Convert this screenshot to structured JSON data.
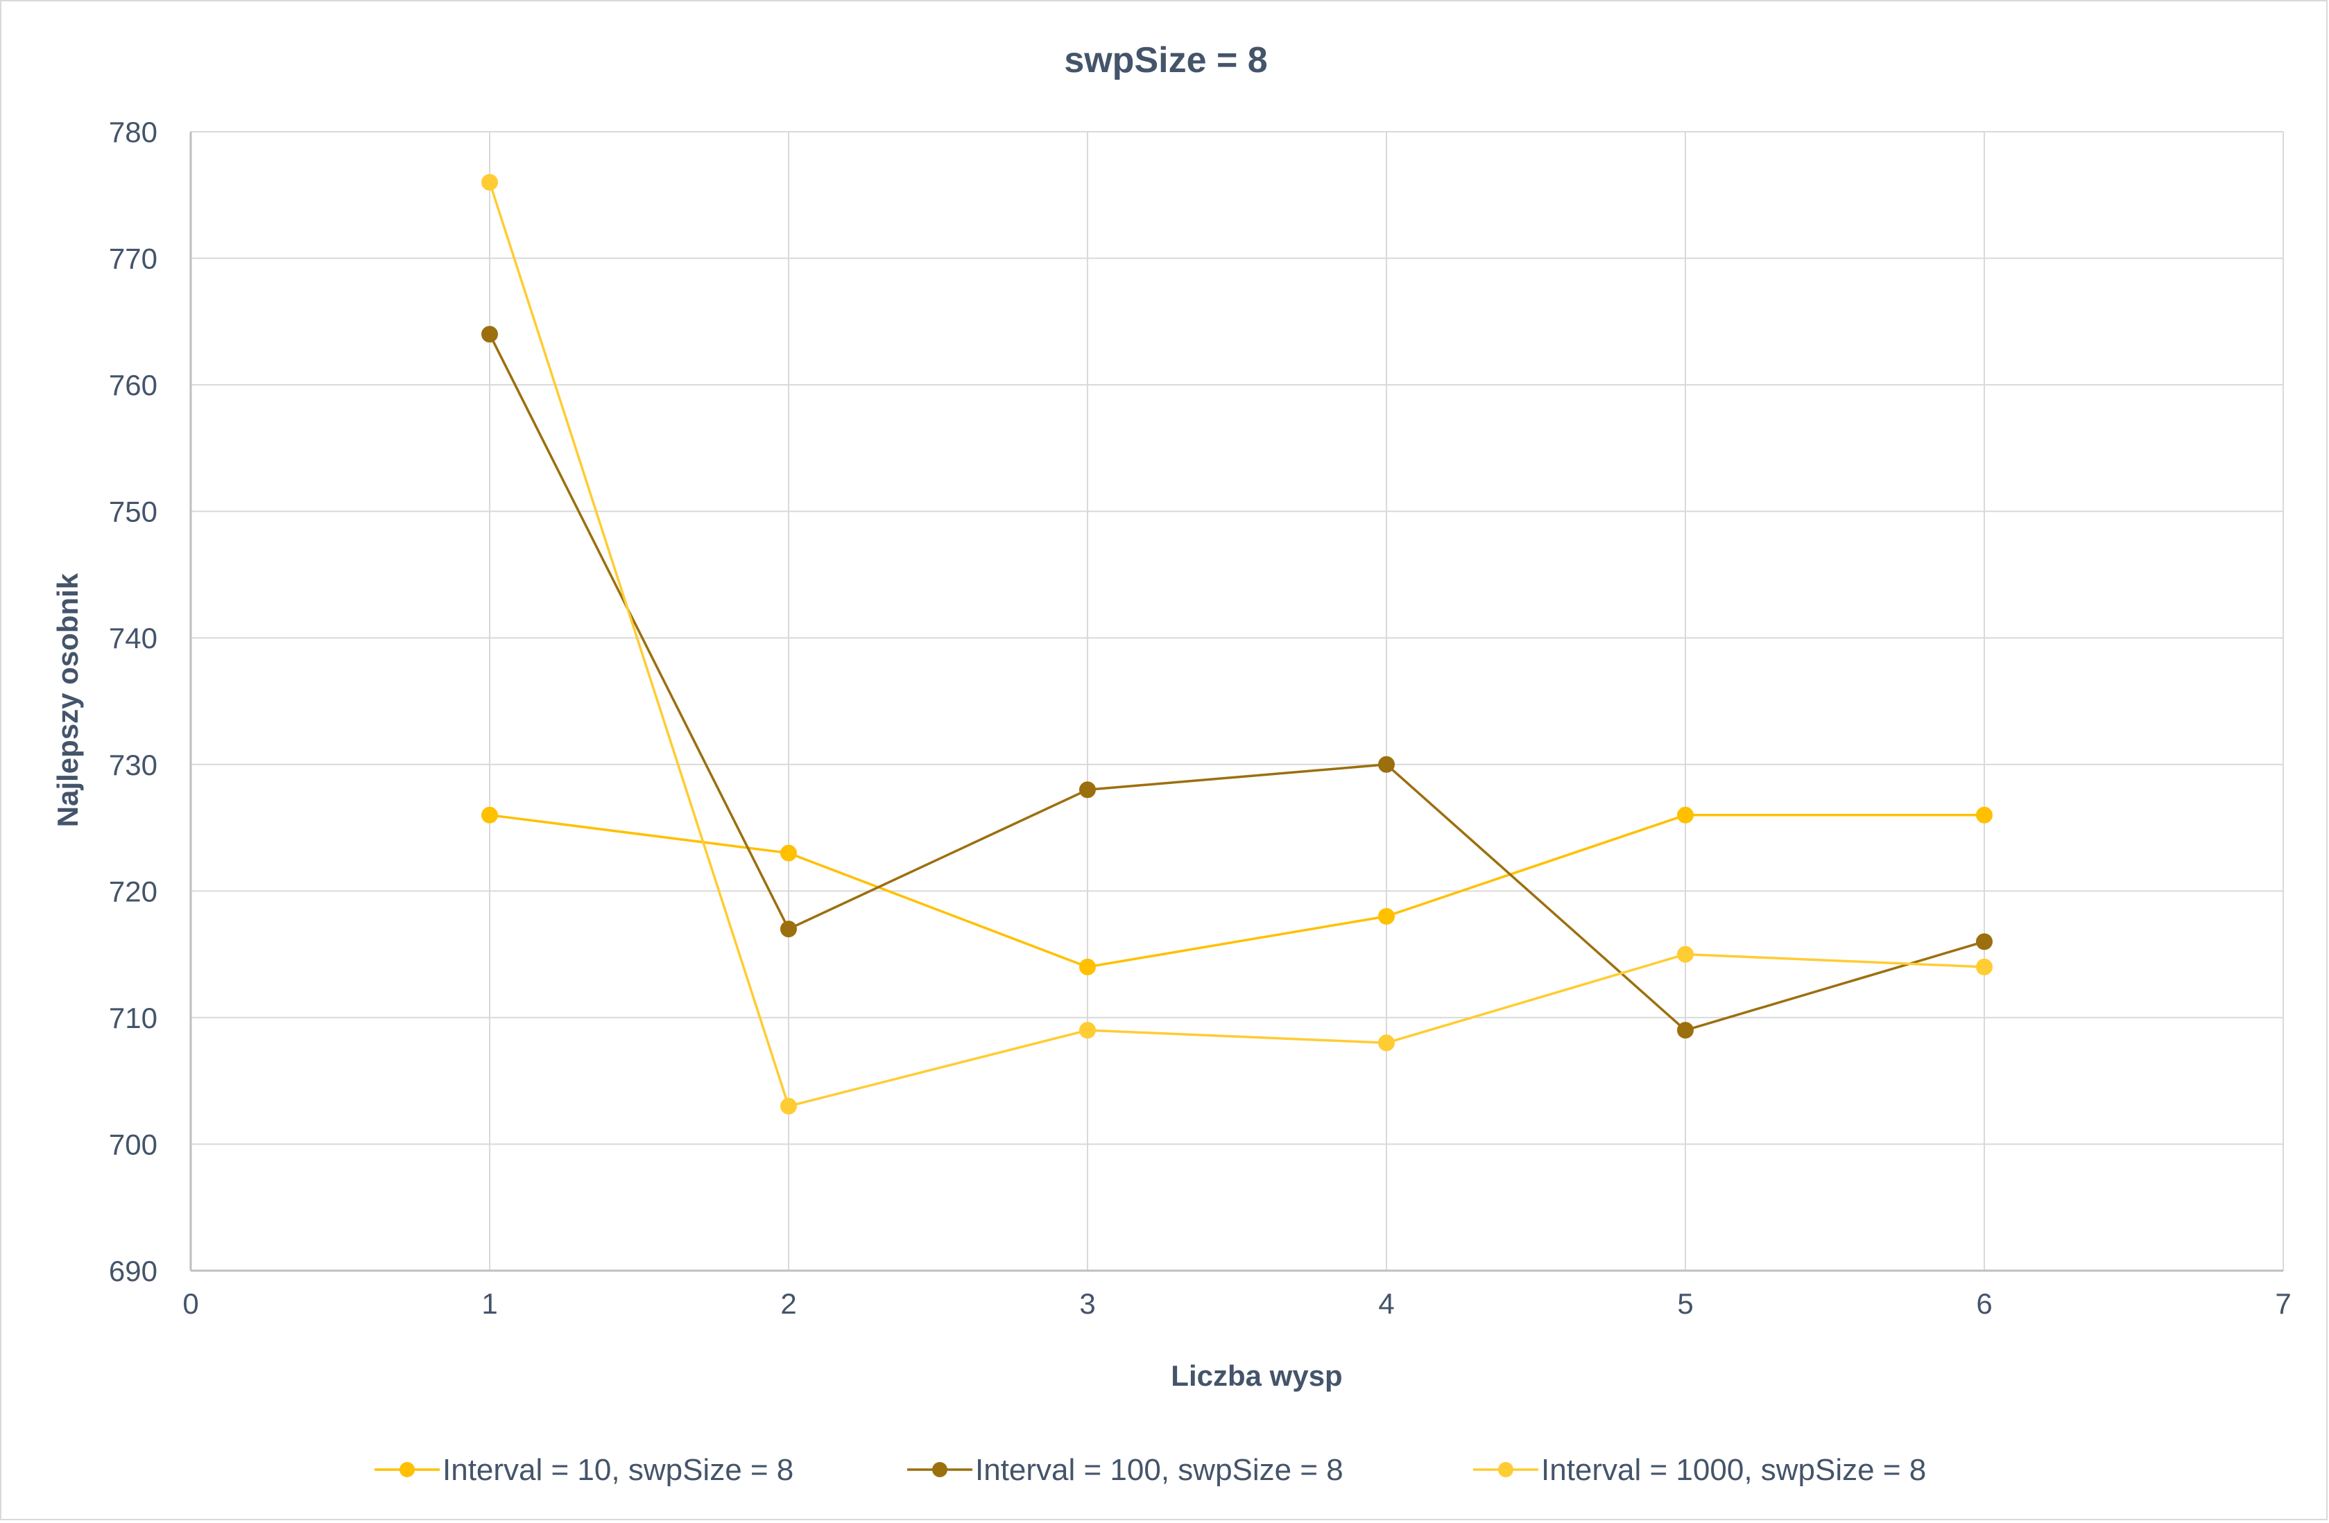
{
  "chart_data": {
    "type": "line",
    "title": "swpSize = 8",
    "xlabel": "Liczba wysp",
    "ylabel": "Najlepszy osobnik",
    "xlim": [
      0,
      7
    ],
    "ylim": [
      690,
      780
    ],
    "x_ticks": [
      0,
      1,
      2,
      3,
      4,
      5,
      6,
      7
    ],
    "y_ticks": [
      690,
      700,
      710,
      720,
      730,
      740,
      750,
      760,
      770,
      780
    ],
    "grid": true,
    "legend_position": "bottom",
    "x": [
      1,
      2,
      3,
      4,
      5,
      6
    ],
    "series": [
      {
        "name": "Interval = 10, swpSize = 8",
        "color": "#ffc000",
        "values": [
          726,
          723,
          714,
          718,
          726,
          726
        ]
      },
      {
        "name": "Interval = 100, swpSize = 8",
        "color": "#9c6f0e",
        "values": [
          764,
          717,
          728,
          730,
          709,
          716
        ]
      },
      {
        "name": "Interval = 1000, swpSize = 8",
        "color": "#ffcc33",
        "values": [
          776,
          703,
          709,
          708,
          715,
          714
        ]
      }
    ]
  }
}
